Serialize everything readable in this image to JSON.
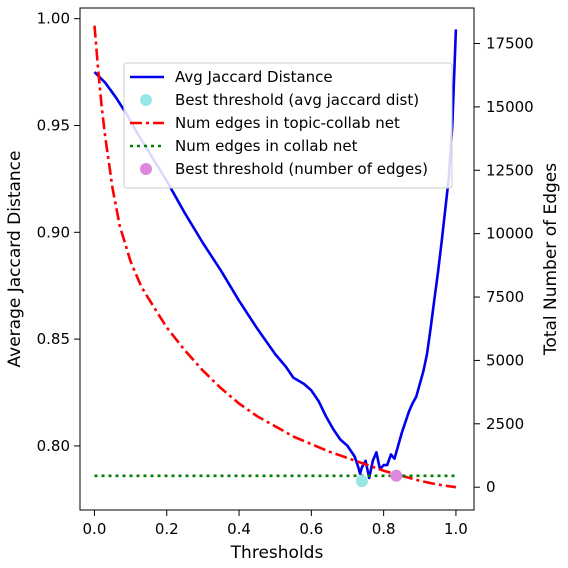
{
  "chart_data": {
    "type": "line",
    "title": "",
    "xlabel": "Thresholds",
    "ylabel_left": "Average Jaccard Distance",
    "ylabel_right": "Total Number of Edges",
    "xlim": [
      -0.04,
      1.05
    ],
    "ylim_left": [
      0.77,
      1.005
    ],
    "ylim_right": [
      -900,
      18900
    ],
    "x_ticks": [
      0.0,
      0.2,
      0.4,
      0.6,
      0.8,
      1.0
    ],
    "x_tick_labels": [
      "0.0",
      "0.2",
      "0.4",
      "0.6",
      "0.8",
      "1.0"
    ],
    "y_left_ticks": [
      0.8,
      0.85,
      0.9,
      0.95,
      1.0
    ],
    "y_left_tick_labels": [
      "0.80",
      "0.85",
      "0.90",
      "0.95",
      "1.00"
    ],
    "y_right_ticks": [
      0,
      2500,
      5000,
      7500,
      10000,
      12500,
      15000,
      17500
    ],
    "y_right_tick_labels": [
      "0",
      "2500",
      "5000",
      "7500",
      "10000",
      "12500",
      "15000",
      "17500"
    ],
    "grid": false,
    "legend_position": "top-right",
    "series": [
      {
        "name": "Avg Jaccard Distance",
        "axis": "left",
        "color": "#0000ee",
        "style": "solid",
        "x": [
          0.0,
          0.03,
          0.06,
          0.09,
          0.12,
          0.16,
          0.2,
          0.25,
          0.3,
          0.35,
          0.4,
          0.45,
          0.5,
          0.53,
          0.55,
          0.58,
          0.6,
          0.62,
          0.64,
          0.66,
          0.68,
          0.7,
          0.72,
          0.73,
          0.735,
          0.74,
          0.75,
          0.76,
          0.77,
          0.78,
          0.79,
          0.8,
          0.81,
          0.82,
          0.83,
          0.84,
          0.85,
          0.86,
          0.87,
          0.88,
          0.89,
          0.9,
          0.91,
          0.92,
          0.93,
          0.94,
          0.95,
          0.96,
          0.97,
          0.98,
          0.99,
          1.0
        ],
        "y": [
          0.975,
          0.97,
          0.963,
          0.955,
          0.946,
          0.935,
          0.924,
          0.909,
          0.895,
          0.882,
          0.868,
          0.855,
          0.843,
          0.837,
          0.832,
          0.829,
          0.826,
          0.821,
          0.814,
          0.808,
          0.803,
          0.8,
          0.795,
          0.79,
          0.787,
          0.79,
          0.793,
          0.785,
          0.793,
          0.797,
          0.789,
          0.791,
          0.791,
          0.796,
          0.794,
          0.8,
          0.806,
          0.811,
          0.816,
          0.82,
          0.823,
          0.829,
          0.835,
          0.843,
          0.855,
          0.868,
          0.881,
          0.895,
          0.91,
          0.925,
          0.95,
          0.995
        ]
      },
      {
        "name": "Best threshold (avg jaccard dist)",
        "axis": "left",
        "kind": "marker",
        "color": "#99e6e6",
        "x": [
          0.74
        ],
        "y": [
          0.7835
        ]
      },
      {
        "name": "Num edges in topic-collab net",
        "axis": "right",
        "color": "#ff0000",
        "style": "dash-dot",
        "x": [
          0.0,
          0.01,
          0.02,
          0.03,
          0.05,
          0.07,
          0.1,
          0.13,
          0.16,
          0.2,
          0.25,
          0.3,
          0.35,
          0.4,
          0.45,
          0.5,
          0.55,
          0.6,
          0.65,
          0.7,
          0.75,
          0.8,
          0.85,
          0.9,
          0.95,
          1.0
        ],
        "y": [
          18200,
          16500,
          15000,
          13800,
          11800,
          10300,
          8900,
          7900,
          7200,
          6300,
          5400,
          4600,
          3900,
          3300,
          2800,
          2400,
          2000,
          1700,
          1400,
          1150,
          900,
          650,
          450,
          250,
          100,
          0
        ]
      },
      {
        "name": "Num edges in collab net",
        "axis": "right",
        "color": "#008000",
        "style": "dotted",
        "x": [
          0.0,
          1.0
        ],
        "y": [
          450,
          450
        ]
      },
      {
        "name": "Best threshold (number of edges)",
        "axis": "right",
        "kind": "marker",
        "color": "#dd88dd",
        "x": [
          0.835
        ],
        "y": [
          450
        ]
      }
    ]
  }
}
